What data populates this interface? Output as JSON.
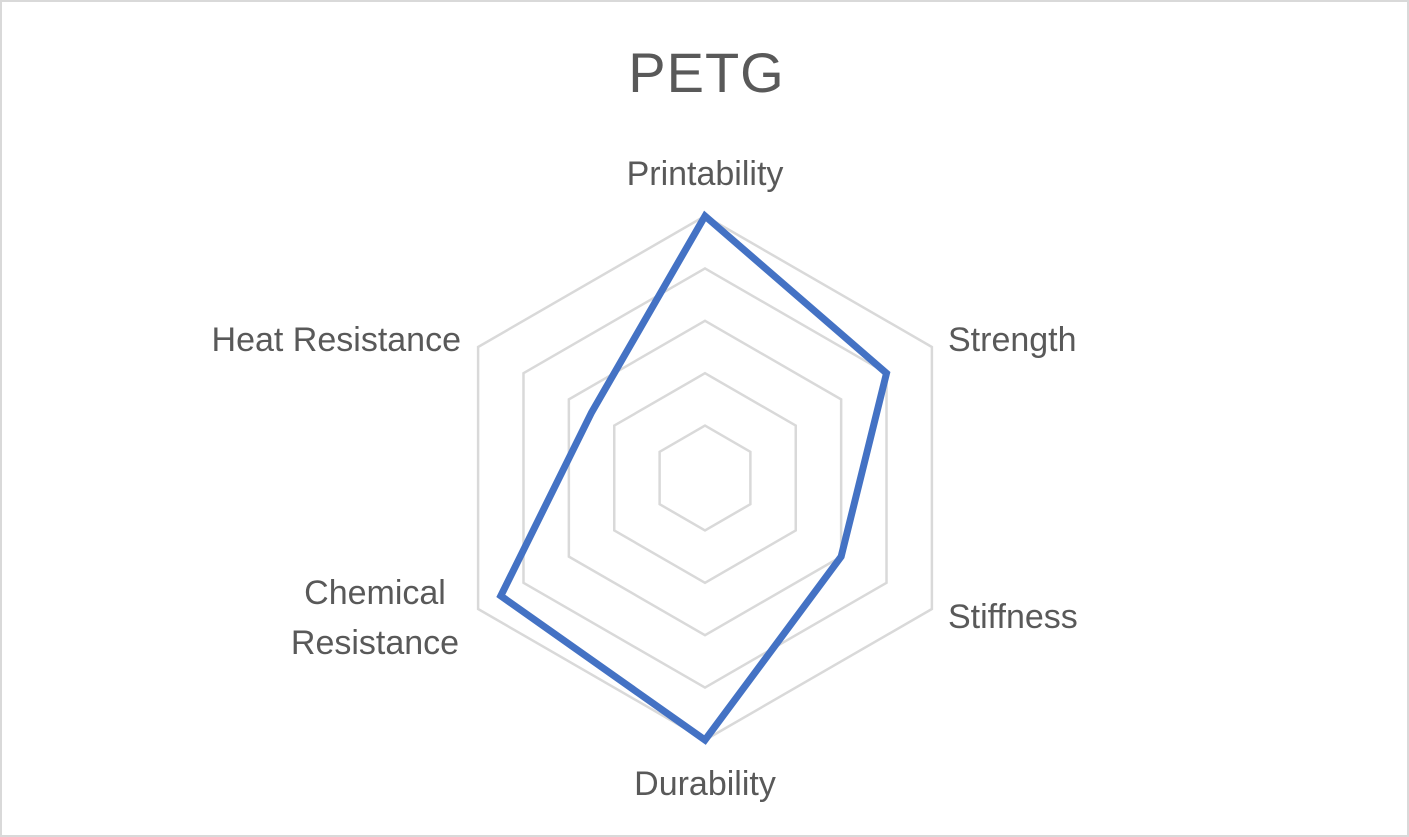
{
  "chart_data": {
    "type": "radar",
    "title": "PETG",
    "axes": [
      {
        "label": [
          "Printability"
        ]
      },
      {
        "label": [
          "Strength"
        ]
      },
      {
        "label": [
          "Stiffness"
        ]
      },
      {
        "label": [
          "Durability"
        ]
      },
      {
        "label": [
          "Chemical",
          "Resistance"
        ]
      },
      {
        "label": [
          "Heat Resistance"
        ]
      }
    ],
    "rmax": 5,
    "rings": [
      1,
      2,
      3,
      4,
      5
    ],
    "series": [
      {
        "values": [
          5,
          4,
          3,
          5,
          4.5,
          2.5
        ],
        "color": "#4472c4"
      }
    ],
    "grid_color": "#d9d9d9",
    "legend": "none"
  }
}
